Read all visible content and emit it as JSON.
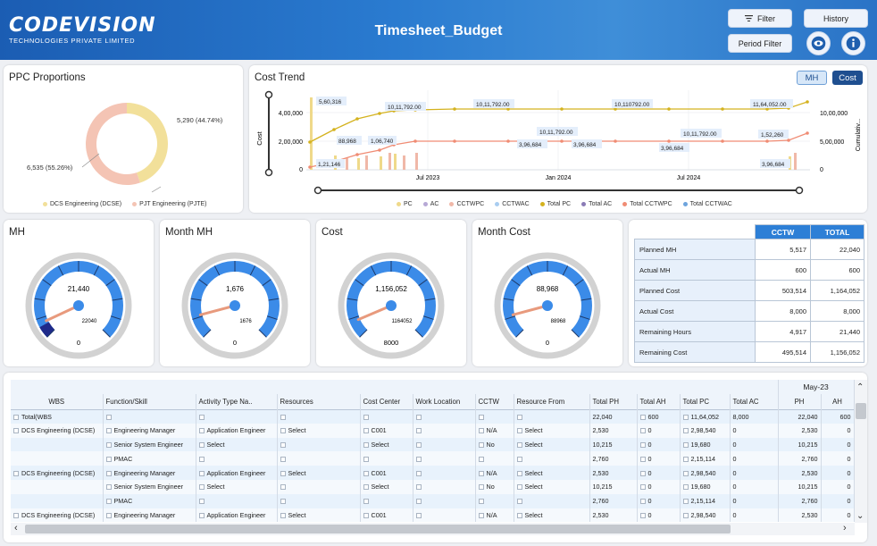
{
  "app": {
    "logo_main": "CODEVISION",
    "logo_sub": "TECHNOLOGIES PRIVATE LIMITED",
    "title": "Timesheet_Budget",
    "buttons": {
      "filter": "Filter",
      "history": "History",
      "period_filter": "Period Filter"
    }
  },
  "ppc": {
    "title": "PPC Proportions",
    "slices": [
      {
        "name": "DCS Engineering (DCSE)",
        "value": 5290,
        "label": "5,290 (44.74%)",
        "color": "#f2e09a"
      },
      {
        "name": "PJT Engineering (PJTE)",
        "value": 6535,
        "label": "6,535 (55.26%)",
        "color": "#f4c4b4"
      }
    ]
  },
  "cost_trend": {
    "title": "Cost Trend",
    "toggle_mh": "MH",
    "toggle_cost": "Cost",
    "y_left_label": "Cost",
    "y_right_label": "Cumulativ...",
    "y_left_ticks": [
      "4,00,000",
      "2,00,000",
      "0"
    ],
    "y_right_ticks": [
      "10,00,000",
      "5,00,000",
      "0"
    ],
    "x_ticks": [
      "Jul 2023",
      "Jan 2024",
      "Jul 2024"
    ],
    "data_labels": {
      "a": "5,60,316",
      "b": "10,11,792.00",
      "c": "10,11,792.00",
      "d": "10,110792.00",
      "e": "11,64,052.00",
      "f": "88,968",
      "g": "1,06,740",
      "h": "10,11,792.00",
      "i": "10,11,792.00",
      "j": "1,52,260",
      "k": "3,96,684",
      "l": "3,96,684",
      "m": "3,96,684",
      "n": "1,21,146",
      "o": "3,96,684"
    },
    "legend": [
      {
        "name": "PC",
        "color": "#efd98a"
      },
      {
        "name": "AC",
        "color": "#b7a9d6"
      },
      {
        "name": "CCTWPC",
        "color": "#f0b8a8"
      },
      {
        "name": "CCTWAC",
        "color": "#a9cdf0"
      },
      {
        "name": "Total PC",
        "color": "#d4b21e"
      },
      {
        "name": "Total AC",
        "color": "#8a7bb6"
      },
      {
        "name": "Total CCTWPC",
        "color": "#f08c74"
      },
      {
        "name": "Total CCTWAC",
        "color": "#6ea4dd"
      }
    ]
  },
  "gauges": [
    {
      "title": "MH",
      "value": "21,440",
      "max": "22040",
      "min": "0",
      "fraction": 0.97
    },
    {
      "title": "Month MH",
      "value": "1,676",
      "max": "1676",
      "min": "0",
      "fraction": 1.0
    },
    {
      "title": "Cost",
      "value": "1,156,052",
      "max": "1164052",
      "min": "8000",
      "fraction": 0.99
    },
    {
      "title": "Month Cost",
      "value": "88,968",
      "max": "88968",
      "min": "0",
      "fraction": 1.0
    }
  ],
  "summary": {
    "headers": [
      "CCTW",
      "TOTAL"
    ],
    "rows": [
      {
        "label": "Planned MH",
        "cctw": "5,517",
        "total": "22,040"
      },
      {
        "label": "Actual MH",
        "cctw": "600",
        "total": "600"
      },
      {
        "label": "Planned Cost",
        "cctw": "503,514",
        "total": "1,164,052"
      },
      {
        "label": "Actual Cost",
        "cctw": "8,000",
        "total": "8,000"
      },
      {
        "label": "Remaining Hours",
        "cctw": "4,917",
        "total": "21,440"
      },
      {
        "label": "Remaining Cost",
        "cctw": "495,514",
        "total": "1,156,052"
      }
    ]
  },
  "grid": {
    "month_header": "May-23",
    "columns": [
      "WBS",
      "Function/Skill",
      "Activity Type Na..",
      "Resources",
      "Cost Center",
      "Work Location",
      "CCTW",
      "Resource From",
      "Total PH",
      "Total AH",
      "Total PC",
      "Total AC",
      "PH",
      "AH"
    ],
    "rows": [
      [
        "Total(WBS",
        "",
        "",
        "",
        "",
        "",
        "",
        "",
        "22,040",
        "600",
        "11,64,052",
        "8,000",
        "22,040",
        "600"
      ],
      [
        "DCS Engineering (DCSE)",
        "Engineering Manager",
        "Application Engineer",
        "Select",
        "C001",
        "",
        "N/A",
        "Select",
        "2,530",
        "0",
        "2,98,540",
        "0",
        "2,530",
        "0"
      ],
      [
        "",
        "Senior System Engineer",
        "Select",
        "",
        "Select",
        "",
        "No",
        "Select",
        "10,215",
        "0",
        "19,680",
        "0",
        "10,215",
        "0"
      ],
      [
        "",
        "PMAC",
        "",
        "",
        "",
        "",
        "",
        "",
        "2,760",
        "0",
        "2,15,114",
        "0",
        "2,760",
        "0"
      ],
      [
        "DCS Engineering (DCSE)",
        "Engineering Manager",
        "Application Engineer",
        "Select",
        "C001",
        "",
        "N/A",
        "Select",
        "2,530",
        "0",
        "2,98,540",
        "0",
        "2,530",
        "0"
      ],
      [
        "",
        "Senior System Engineer",
        "Select",
        "",
        "Select",
        "",
        "No",
        "Select",
        "10,215",
        "0",
        "19,680",
        "0",
        "10,215",
        "0"
      ],
      [
        "",
        "PMAC",
        "",
        "",
        "",
        "",
        "",
        "",
        "2,760",
        "0",
        "2,15,114",
        "0",
        "2,760",
        "0"
      ],
      [
        "DCS Engineering (DCSE)",
        "Engineering Manager",
        "Application Engineer",
        "Select",
        "C001",
        "",
        "N/A",
        "Select",
        "2,530",
        "0",
        "2,98,540",
        "0",
        "2,530",
        "0"
      ]
    ]
  }
}
